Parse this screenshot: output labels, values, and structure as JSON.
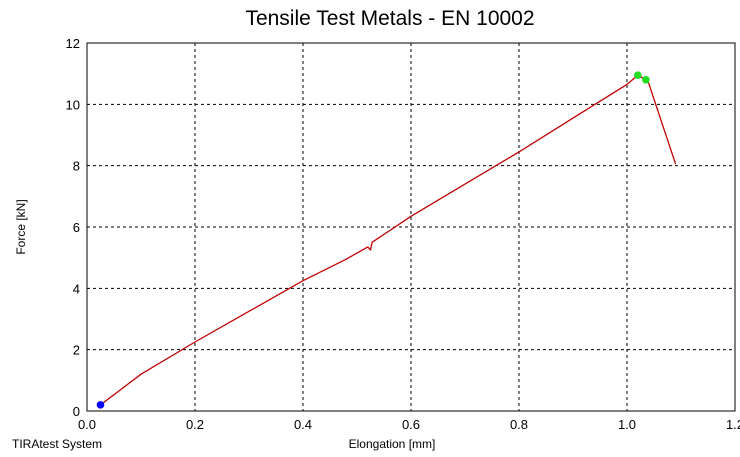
{
  "chart_data": {
    "type": "line",
    "title": "Tensile Test Metals - EN 10002",
    "xlabel": "Elongation [mm]",
    "ylabel": "Force [kN]",
    "xlim": [
      0.0,
      1.2
    ],
    "ylim": [
      0,
      12
    ],
    "xticks": [
      0.0,
      0.2,
      0.4,
      0.6,
      0.8,
      1.0,
      1.2
    ],
    "xtick_labels": [
      "0.0",
      "0.2",
      "0.4",
      "0.6",
      "0.8",
      "1.0",
      "1.2"
    ],
    "yticks": [
      0,
      2,
      4,
      6,
      8,
      10,
      12
    ],
    "ytick_labels": [
      "0",
      "2",
      "4",
      "6",
      "8",
      "10",
      "12"
    ],
    "grid": true,
    "series": [
      {
        "color": "#c00000",
        "points": [
          [
            0.025,
            0.2
          ],
          [
            0.1,
            1.2
          ],
          [
            0.2,
            2.25
          ],
          [
            0.3,
            3.25
          ],
          [
            0.4,
            4.25
          ],
          [
            0.48,
            4.95
          ],
          [
            0.52,
            5.35
          ],
          [
            0.525,
            5.25
          ],
          [
            0.528,
            5.5
          ],
          [
            0.6,
            6.35
          ],
          [
            0.7,
            7.4
          ],
          [
            0.8,
            8.45
          ],
          [
            0.9,
            9.55
          ],
          [
            1.0,
            10.65
          ],
          [
            1.02,
            10.95
          ],
          [
            1.03,
            10.85
          ],
          [
            1.04,
            10.7
          ],
          [
            1.09,
            8.05
          ]
        ]
      }
    ],
    "markers": [
      {
        "x": 0.025,
        "y": 0.2,
        "color": "#0000ff"
      },
      {
        "x": 1.02,
        "y": 10.95,
        "color": "#22dd22"
      },
      {
        "x": 1.035,
        "y": 10.8,
        "color": "#22dd22"
      }
    ]
  },
  "footer": {
    "system_label": "TIRAtest System"
  }
}
